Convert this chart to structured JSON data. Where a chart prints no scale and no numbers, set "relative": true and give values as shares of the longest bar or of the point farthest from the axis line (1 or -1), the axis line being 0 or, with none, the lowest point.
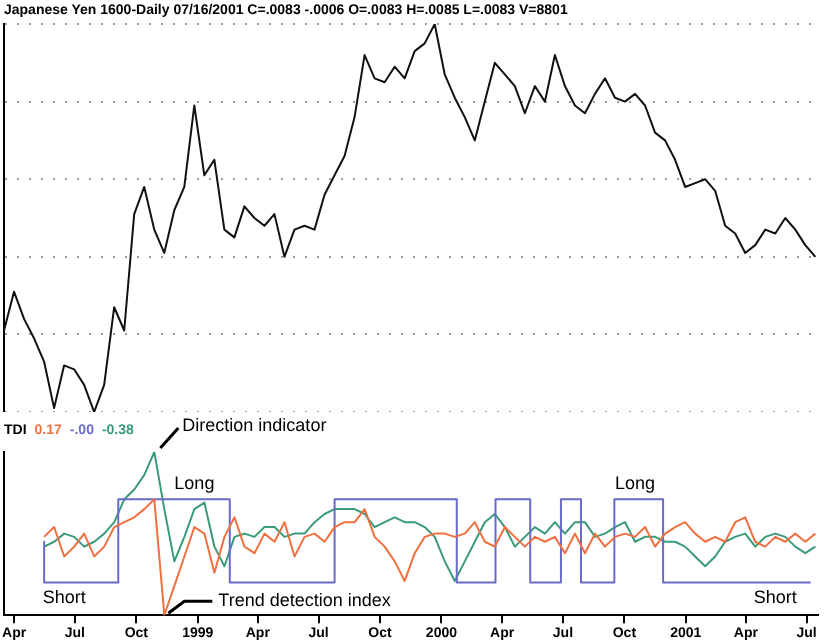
{
  "chart_data": [
    {
      "type": "line",
      "title": "Japanese Yen 1600-Daily 07/16/2001 C=.0083 -.0006 O=.0083 H=.0085 L=.0083 V=8801",
      "relative": true,
      "grid": "y",
      "legend": false,
      "tick_labels": false,
      "x": [
        "1998-03-17",
        "1998-04-01",
        "1998-04-16",
        "1998-05-01",
        "1998-05-16",
        "1998-05-31",
        "1998-06-15",
        "1998-06-30",
        "1998-07-15",
        "1998-07-30",
        "1998-08-14",
        "1998-08-29",
        "1998-09-13",
        "1998-09-28",
        "1998-10-13",
        "1998-10-28",
        "1998-11-12",
        "1998-11-27",
        "1998-12-12",
        "1998-12-27",
        "1999-01-11",
        "1999-01-26",
        "1999-02-10",
        "1999-02-25",
        "1999-03-12",
        "1999-03-27",
        "1999-04-11",
        "1999-04-26",
        "1999-05-11",
        "1999-05-26",
        "1999-06-10",
        "1999-06-25",
        "1999-07-10",
        "1999-07-25",
        "1999-08-09",
        "1999-08-24",
        "1999-09-08",
        "1999-09-23",
        "1999-10-08",
        "1999-10-23",
        "1999-11-07",
        "1999-11-22",
        "1999-12-07",
        "1999-12-22",
        "2000-01-06",
        "2000-01-21",
        "2000-02-05",
        "2000-02-20",
        "2000-03-06",
        "2000-03-21",
        "2000-04-05",
        "2000-04-20",
        "2000-05-05",
        "2000-05-20",
        "2000-06-04",
        "2000-06-19",
        "2000-07-04",
        "2000-07-19",
        "2000-08-03",
        "2000-08-18",
        "2000-09-02",
        "2000-09-17",
        "2000-10-02",
        "2000-10-17",
        "2000-11-01",
        "2000-11-16",
        "2000-12-01",
        "2000-12-16",
        "2000-12-31",
        "2001-01-15",
        "2001-01-30",
        "2001-02-14",
        "2001-03-01",
        "2001-03-16",
        "2001-03-31",
        "2001-04-15",
        "2001-04-30",
        "2001-05-15",
        "2001-05-30",
        "2001-06-14",
        "2001-06-29",
        "2001-07-14"
      ],
      "xlim": [
        "1998-03-17",
        "2001-07-18"
      ],
      "series": [
        {
          "color": "#111111",
          "values": [
            0.21,
            0.31,
            0.24,
            0.19,
            0.13,
            0.01,
            0.12,
            0.11,
            0.07,
            0,
            0.07,
            0.27,
            0.21,
            0.51,
            0.58,
            0.47,
            0.41,
            0.52,
            0.58,
            0.79,
            0.61,
            0.65,
            0.47,
            0.45,
            0.53,
            0.5,
            0.48,
            0.51,
            0.4,
            0.47,
            0.48,
            0.47,
            0.56,
            0.61,
            0.66,
            0.76,
            0.92,
            0.86,
            0.85,
            0.89,
            0.86,
            0.93,
            0.95,
            1,
            0.87,
            0.81,
            0.76,
            0.7,
            0.8,
            0.9,
            0.87,
            0.84,
            0.77,
            0.84,
            0.8,
            0.92,
            0.84,
            0.79,
            0.77,
            0.82,
            0.86,
            0.81,
            0.8,
            0.82,
            0.79,
            0.72,
            0.7,
            0.65,
            0.58,
            0.59,
            0.6,
            0.57,
            0.48,
            0.46,
            0.41,
            0.43,
            0.47,
            0.46,
            0.5,
            0.47,
            0.43,
            0.4
          ]
        }
      ]
    },
    {
      "type": "line",
      "title": "TDI",
      "relative": true,
      "legend": false,
      "x": [
        "1998-05-16",
        "1998-05-31",
        "1998-06-15",
        "1998-06-30",
        "1998-07-15",
        "1998-07-30",
        "1998-08-14",
        "1998-08-29",
        "1998-09-13",
        "1998-09-28",
        "1998-10-13",
        "1998-10-28",
        "1998-11-12",
        "1998-11-27",
        "1998-12-12",
        "1998-12-27",
        "1999-01-11",
        "1999-01-26",
        "1999-02-10",
        "1999-02-25",
        "1999-03-12",
        "1999-03-27",
        "1999-04-11",
        "1999-04-26",
        "1999-05-11",
        "1999-05-26",
        "1999-06-10",
        "1999-06-25",
        "1999-07-10",
        "1999-07-25",
        "1999-08-09",
        "1999-08-24",
        "1999-09-08",
        "1999-09-23",
        "1999-10-08",
        "1999-10-23",
        "1999-11-07",
        "1999-11-22",
        "1999-12-07",
        "1999-12-22",
        "2000-01-06",
        "2000-01-21",
        "2000-02-05",
        "2000-02-20",
        "2000-03-06",
        "2000-03-21",
        "2000-04-05",
        "2000-04-20",
        "2000-05-05",
        "2000-05-20",
        "2000-06-04",
        "2000-06-19",
        "2000-07-04",
        "2000-07-19",
        "2000-08-03",
        "2000-08-18",
        "2000-09-02",
        "2000-09-17",
        "2000-10-02",
        "2000-10-17",
        "2000-11-01",
        "2000-11-16",
        "2000-12-01",
        "2000-12-16",
        "2000-12-31",
        "2001-01-15",
        "2001-01-30",
        "2001-02-14",
        "2001-03-01",
        "2001-03-16",
        "2001-03-31",
        "2001-04-15",
        "2001-04-30",
        "2001-05-15",
        "2001-05-30",
        "2001-06-14",
        "2001-06-29",
        "2001-07-14"
      ],
      "xlim": [
        "1998-03-17",
        "2001-07-18"
      ],
      "xticks": [
        {
          "value": "1998-04-01",
          "label": "Apr"
        },
        {
          "value": "1998-07-01",
          "label": "Jul"
        },
        {
          "value": "1998-10-01",
          "label": "Oct"
        },
        {
          "value": "1999-01-01",
          "label": "1999"
        },
        {
          "value": "1999-04-01",
          "label": "Apr"
        },
        {
          "value": "1999-07-01",
          "label": "Jul"
        },
        {
          "value": "1999-10-01",
          "label": "Oct"
        },
        {
          "value": "2000-01-01",
          "label": "2000"
        },
        {
          "value": "2000-04-01",
          "label": "Apr"
        },
        {
          "value": "2000-07-01",
          "label": "Jul"
        },
        {
          "value": "2000-10-01",
          "label": "Oct"
        },
        {
          "value": "2001-01-01",
          "label": "2001"
        },
        {
          "value": "2001-04-01",
          "label": "Apr"
        },
        {
          "value": "2001-07-01",
          "label": "Jul"
        }
      ],
      "series": [
        {
          "name": "0.17",
          "color": "#f07040",
          "values": [
            0.48,
            0.54,
            0.36,
            0.42,
            0.5,
            0.36,
            0.42,
            0.54,
            0.57,
            0.6,
            0.65,
            0.71,
            0,
            0.18,
            0.36,
            0.54,
            0.5,
            0.26,
            0.48,
            0.6,
            0.42,
            0.38,
            0.5,
            0.45,
            0.57,
            0.36,
            0.48,
            0.5,
            0.45,
            0.54,
            0.57,
            0.57,
            0.65,
            0.48,
            0.42,
            0.33,
            0.21,
            0.38,
            0.48,
            0.5,
            0.5,
            0.48,
            0.5,
            0.57,
            0.45,
            0.42,
            0.54,
            0.48,
            0.42,
            0.48,
            0.45,
            0.48,
            0.38,
            0.5,
            0.38,
            0.5,
            0.42,
            0.48,
            0.5,
            0.48,
            0.54,
            0.42,
            0.5,
            0.54,
            0.57,
            0.5,
            0.45,
            0.48,
            0.45,
            0.57,
            0.6,
            0.45,
            0.42,
            0.48,
            0.45,
            0.5,
            0.45,
            0.5
          ]
        },
        {
          "name": "-.00",
          "type": "step",
          "color": "#6a6ac8",
          "x": [
            "1998-05-15",
            "1998-05-16",
            "1998-09-04",
            "1999-02-18",
            "1999-07-25",
            "2000-01-24",
            "2000-03-22",
            "2000-05-13",
            "2000-06-28",
            "2000-07-28",
            "2000-09-16",
            "2000-11-28",
            "2001-07-07"
          ],
          "values": [
            0.45,
            0.2,
            0.71,
            0.2,
            0.71,
            0.2,
            0.71,
            0.2,
            0.71,
            0.2,
            0.71,
            0.2,
            0.2
          ]
        },
        {
          "name": "-0.38",
          "color": "#3a9a7a",
          "values": [
            0.42,
            0.45,
            0.5,
            0.48,
            0.42,
            0.45,
            0.5,
            0.57,
            0.71,
            0.77,
            0.86,
            1,
            0.65,
            0.33,
            0.48,
            0.65,
            0.69,
            0.42,
            0.3,
            0.48,
            0.5,
            0.48,
            0.54,
            0.54,
            0.48,
            0.5,
            0.5,
            0.57,
            0.62,
            0.65,
            0.65,
            0.65,
            0.62,
            0.54,
            0.57,
            0.6,
            0.57,
            0.57,
            0.54,
            0.48,
            0.33,
            0.21,
            0.33,
            0.45,
            0.57,
            0.62,
            0.54,
            0.42,
            0.48,
            0.54,
            0.5,
            0.57,
            0.5,
            0.57,
            0.57,
            0.48,
            0.5,
            0.54,
            0.57,
            0.45,
            0.48,
            0.48,
            0.45,
            0.45,
            0.42,
            0.36,
            0.3,
            0.36,
            0.45,
            0.48,
            0.5,
            0.42,
            0.48,
            0.5,
            0.48,
            0.42,
            0.38,
            0.42
          ]
        }
      ],
      "annotations": [
        {
          "text": "Direction indicator",
          "x": "1998-10-28",
          "y": 1
        },
        {
          "text": "Trend detection index",
          "x": "1998-11-12",
          "y": 0
        },
        {
          "text": "Long",
          "x": "1998-12-27",
          "y": 0.71
        },
        {
          "text": "Long",
          "x": "2000-10-17",
          "y": 0.71
        },
        {
          "text": "Short",
          "x": "1998-06-15",
          "y": 0.2
        },
        {
          "text": "Short",
          "x": "2001-05-15",
          "y": 0.2
        }
      ]
    }
  ]
}
